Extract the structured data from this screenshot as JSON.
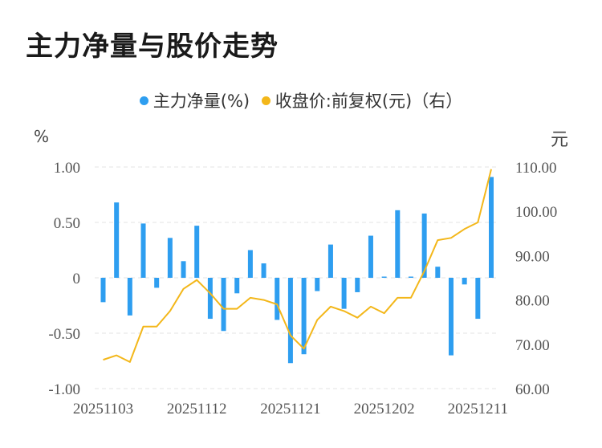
{
  "title": "主力净量与股价走势",
  "legend": [
    {
      "label": "主力净量(%)",
      "color": "#2e9ef0"
    },
    {
      "label": "收盘价:前复权(元)（右）",
      "color": "#f3b71a"
    }
  ],
  "unit_left": "%",
  "unit_right": "元",
  "chart_data": {
    "type": "bar+line",
    "left_axis": {
      "unit": "%",
      "ylim": [
        -1.0,
        1.0
      ],
      "ticks": [
        "1.00",
        "0.50",
        "0",
        "-0.50",
        "-1.00"
      ]
    },
    "right_axis": {
      "unit": "元",
      "ylim": [
        60,
        110
      ],
      "ticks": [
        "110.00",
        "100.00",
        "90.00",
        "80.00",
        "70.00",
        "60.00"
      ]
    },
    "x_tick_labels": [
      "20251103",
      "20251112",
      "20251121",
      "20251202",
      "20251211"
    ],
    "series": [
      {
        "name": "主力净量(%)",
        "type": "bar",
        "color": "#2e9ef0",
        "values": [
          -0.22,
          0.68,
          -0.34,
          0.49,
          -0.09,
          0.36,
          0.15,
          0.47,
          -0.37,
          -0.48,
          -0.14,
          0.25,
          0.13,
          -0.38,
          -0.77,
          -0.69,
          -0.12,
          0.3,
          -0.28,
          -0.13,
          0.38,
          0.01,
          0.61,
          0.01,
          0.58,
          0.1,
          -0.7,
          -0.06,
          -0.37,
          0.91
        ]
      },
      {
        "name": "收盘价:前复权(元)（右）",
        "type": "line",
        "color": "#f3b71a",
        "values": [
          66.5,
          67.5,
          66.0,
          74.0,
          74.0,
          77.5,
          82.5,
          84.5,
          81.5,
          78.0,
          78.0,
          80.5,
          80.0,
          79.0,
          72.0,
          69.0,
          75.5,
          78.5,
          77.5,
          76.0,
          78.5,
          77.0,
          80.5,
          80.5,
          86.5,
          93.5,
          94.0,
          96.0,
          97.5,
          109.5
        ]
      }
    ]
  }
}
